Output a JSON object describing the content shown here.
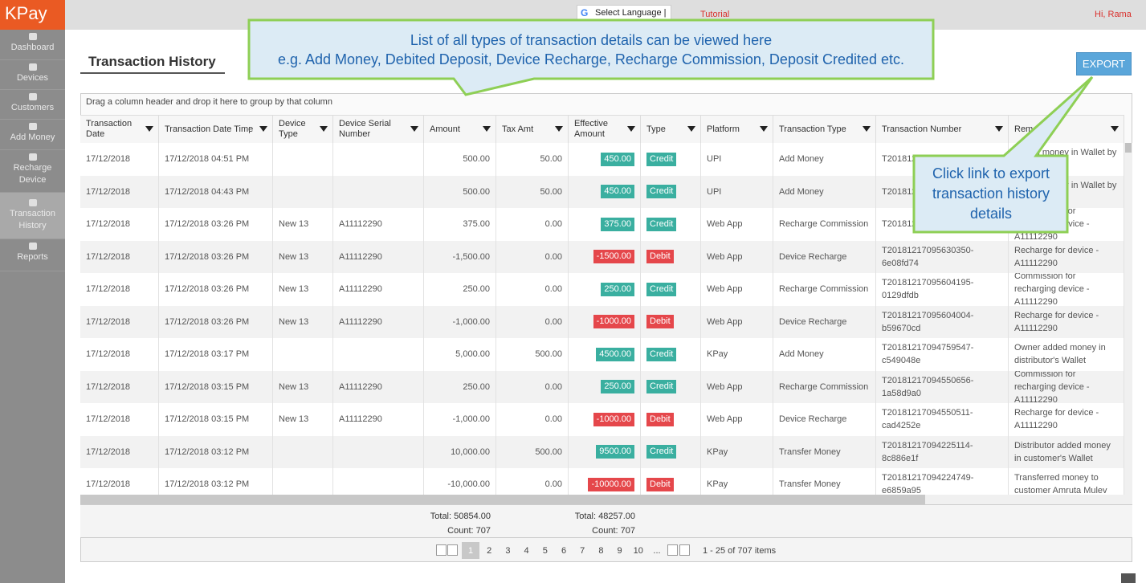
{
  "app": {
    "logo": "KPay",
    "greeting": "Hi, Rama",
    "language": "Select Language",
    "tutorial": "Tutorial"
  },
  "sidebar": {
    "items": [
      "Dashboard",
      "Devices",
      "Customers",
      "Add Money",
      "Recharge Device",
      "Transaction History",
      "Reports"
    ],
    "active": 5
  },
  "page": {
    "title": "Transaction History",
    "export": "EXPORT",
    "group_hint": "Drag a column header and drop it here to group by that column"
  },
  "callouts": {
    "top": [
      "List of all types of transaction details can be viewed here",
      "e.g. Add Money, Debited Deposit, Device Recharge, Recharge Commission, Deposit Credited etc."
    ],
    "export": "Click link to export transaction history details"
  },
  "table": {
    "columns": [
      "Transaction Date",
      "Transaction Date Time",
      "Device Type",
      "Device Serial Number",
      "Amount",
      "Tax Amt",
      "Effective Amount",
      "Type",
      "Platform",
      "Transaction Type",
      "Transaction Number",
      "Remarks"
    ],
    "type_colors": {
      "Credit": "#3aafa0",
      "Debit": "#e5474b"
    },
    "rows": [
      [
        "17/12/2018",
        "17/12/2018 04:51 PM",
        null,
        null,
        "500.00",
        "50.00",
        "450.00",
        "Credit",
        "UPI",
        "Add Money",
        "T2018121",
        "Added money in Wallet by UPI"
      ],
      [
        "17/12/2018",
        "17/12/2018 04:43 PM",
        null,
        null,
        "500.00",
        "50.00",
        "450.00",
        "Credit",
        "UPI",
        "Add Money",
        "T2018121",
        "Added money in Wallet by UPI"
      ],
      [
        "17/12/2018",
        "17/12/2018 03:26 PM",
        "New 13",
        "A11112290",
        "375.00",
        "0.00",
        "375.00",
        "Credit",
        "Web App",
        "Recharge Commission",
        "T2018121",
        "Commission for recharging device - A11112290"
      ],
      [
        "17/12/2018",
        "17/12/2018 03:26 PM",
        "New 13",
        "A11112290",
        "-1,500.00",
        "0.00",
        "-1500.00",
        "Debit",
        "Web App",
        "Device Recharge",
        "T20181217095630350-6e08fd74",
        "Recharge for device - A11112290"
      ],
      [
        "17/12/2018",
        "17/12/2018 03:26 PM",
        "New 13",
        "A11112290",
        "250.00",
        "0.00",
        "250.00",
        "Credit",
        "Web App",
        "Recharge Commission",
        "T20181217095604195-0129dfdb",
        "Commission for recharging device - A11112290"
      ],
      [
        "17/12/2018",
        "17/12/2018 03:26 PM",
        "New 13",
        "A11112290",
        "-1,000.00",
        "0.00",
        "-1000.00",
        "Debit",
        "Web App",
        "Device Recharge",
        "T20181217095604004-b59670cd",
        "Recharge for device - A11112290"
      ],
      [
        "17/12/2018",
        "17/12/2018 03:17 PM",
        null,
        null,
        "5,000.00",
        "500.00",
        "4500.00",
        "Credit",
        "KPay",
        "Add Money",
        "T20181217094759547-c549048e",
        "Owner added money in distributor's Wallet"
      ],
      [
        "17/12/2018",
        "17/12/2018 03:15 PM",
        "New 13",
        "A11112290",
        "250.00",
        "0.00",
        "250.00",
        "Credit",
        "Web App",
        "Recharge Commission",
        "T20181217094550656-1a58d9a0",
        "Commission for recharging device - A11112290"
      ],
      [
        "17/12/2018",
        "17/12/2018 03:15 PM",
        "New 13",
        "A11112290",
        "-1,000.00",
        "0.00",
        "-1000.00",
        "Debit",
        "Web App",
        "Device Recharge",
        "T20181217094550511-cad4252e",
        "Recharge for device - A11112290"
      ],
      [
        "17/12/2018",
        "17/12/2018 03:12 PM",
        null,
        null,
        "10,000.00",
        "500.00",
        "9500.00",
        "Credit",
        "KPay",
        "Transfer Money",
        "T20181217094225114-8c886e1f",
        "Distributor added money in customer's Wallet"
      ],
      [
        "17/12/2018",
        "17/12/2018 03:12 PM",
        null,
        null,
        "-10,000.00",
        "0.00",
        "-10000.00",
        "Debit",
        "KPay",
        "Transfer Money",
        "T20181217094224749-e6859a95",
        "Transferred money to customer Amruta Mulev"
      ]
    ],
    "footer": {
      "amount_total": "Total: 50854.00",
      "amount_count": "Count: 707",
      "effective_total": "Total: 48257.00",
      "effective_count": "Count: 707"
    }
  },
  "pager": {
    "pages": [
      "1",
      "2",
      "3",
      "4",
      "5",
      "6",
      "7",
      "8",
      "9",
      "10",
      "..."
    ],
    "current": 0,
    "info": "1 - 25 of 707 items"
  }
}
